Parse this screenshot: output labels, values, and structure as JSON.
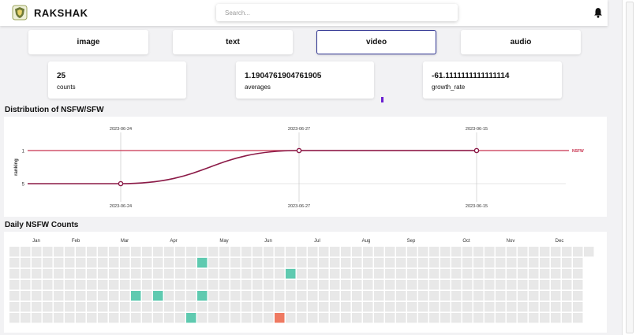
{
  "header": {
    "brand": "RAKSHAK",
    "logo_icon": "shield-logo-icon",
    "search_placeholder": "Search...",
    "bell_icon": "bell-icon"
  },
  "tabs": [
    {
      "label": "image",
      "active": false
    },
    {
      "label": "text",
      "active": false
    },
    {
      "label": "video",
      "active": true
    },
    {
      "label": "audio",
      "active": false
    }
  ],
  "stats": [
    {
      "value": "25",
      "label": "counts"
    },
    {
      "value": "1.1904761904761905",
      "label": "averages"
    },
    {
      "value": "-61.1111111111111114",
      "label": "growth_rate"
    }
  ],
  "distribution": {
    "title": "Distribution of NSFW/SFW",
    "chart_data": {
      "type": "line",
      "x": [
        "2023-06-24",
        "2023-06-27",
        "2023-06-15"
      ],
      "ylabel": "ranking",
      "y_ticks": [
        "5",
        "1"
      ],
      "series": [
        {
          "name": "NSFW",
          "values": [
            "5",
            "1",
            "1"
          ],
          "color": "#8b1a47"
        }
      ],
      "reference_line": {
        "value": "1",
        "label": "NSFW",
        "color": "#c8334f"
      }
    }
  },
  "daily": {
    "title": "Daily NSFW Counts",
    "chart_data": {
      "type": "heatmap",
      "months": [
        "Jan",
        "Feb",
        "Mar",
        "Apr",
        "May",
        "Jun",
        "Jul",
        "Aug",
        "Sep",
        "Oct",
        "Nov",
        "Dec"
      ],
      "rows": 7,
      "weeks": 53,
      "empty_color": "#e8e8e8",
      "highlighted": [
        {
          "week": 17,
          "day": 1,
          "color": "#5fcab0"
        },
        {
          "week": 25,
          "day": 2,
          "color": "#5fcab0"
        },
        {
          "week": 11,
          "day": 4,
          "color": "#5fcab0"
        },
        {
          "week": 13,
          "day": 4,
          "color": "#5fcab0"
        },
        {
          "week": 17,
          "day": 4,
          "color": "#5fcab0"
        },
        {
          "week": 16,
          "day": 6,
          "color": "#5fcab0"
        },
        {
          "week": 24,
          "day": 6,
          "color": "#ef7a62"
        }
      ]
    }
  }
}
